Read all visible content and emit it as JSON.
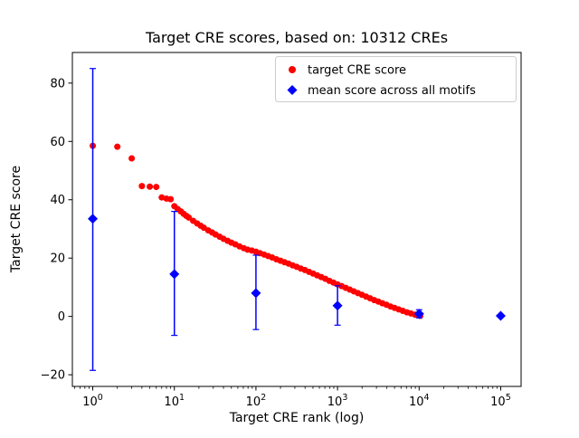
{
  "chart_data": {
    "type": "scatter",
    "title": "Target CRE scores, based on: 10312 CREs",
    "xlabel": "Target CRE rank (log)",
    "ylabel": "Target CRE score",
    "x_scale": "log",
    "xlog_range": [
      -0.25,
      5.25
    ],
    "ylim": [
      -24,
      90.5
    ],
    "x_ticks": [
      {
        "value": 1,
        "base": "10",
        "exp": "0"
      },
      {
        "value": 10,
        "base": "10",
        "exp": "1"
      },
      {
        "value": 100,
        "base": "10",
        "exp": "2"
      },
      {
        "value": 1000,
        "base": "10",
        "exp": "3"
      },
      {
        "value": 10000,
        "base": "10",
        "exp": "4"
      },
      {
        "value": 100000,
        "base": "10",
        "exp": "5"
      }
    ],
    "y_ticks": [
      {
        "value": -20,
        "label": "−20"
      },
      {
        "value": 0,
        "label": "0"
      },
      {
        "value": 20,
        "label": "20"
      },
      {
        "value": 40,
        "label": "40"
      },
      {
        "value": 60,
        "label": "60"
      },
      {
        "value": 80,
        "label": "80"
      }
    ],
    "colors": {
      "target": "#ff0000",
      "mean": "#0000ff"
    },
    "legend": [
      {
        "label": "target CRE score",
        "marker": "circle",
        "color": "#ff0000"
      },
      {
        "label": "mean score across all motifs",
        "marker": "diamond",
        "color": "#0000ff"
      }
    ],
    "series": {
      "target_cre_score": {
        "name": "target CRE score",
        "marker": "circle",
        "points": [
          [
            1,
            58.5
          ],
          [
            2,
            58.2
          ],
          [
            3,
            54.2
          ],
          [
            4,
            44.7
          ],
          [
            5,
            44.5
          ],
          [
            6,
            44.4
          ],
          [
            7,
            40.8
          ],
          [
            8,
            40.4
          ],
          [
            9,
            40.2
          ],
          [
            10,
            37.8
          ],
          [
            11,
            36.8
          ],
          [
            12,
            36.0
          ],
          [
            13,
            35.2
          ],
          [
            14,
            34.5
          ],
          [
            15,
            33.9
          ],
          [
            17,
            32.8
          ],
          [
            19,
            31.9
          ],
          [
            21,
            31.1
          ],
          [
            23,
            30.4
          ],
          [
            26,
            29.5
          ],
          [
            29,
            28.8
          ],
          [
            32,
            28.1
          ],
          [
            36,
            27.3
          ],
          [
            40,
            26.6
          ],
          [
            45,
            25.9
          ],
          [
            50,
            25.3
          ],
          [
            56,
            24.7
          ],
          [
            63,
            24.0
          ],
          [
            71,
            23.4
          ],
          [
            79,
            22.9
          ],
          [
            89,
            22.6
          ],
          [
            100,
            22.2
          ],
          [
            112,
            21.7
          ],
          [
            126,
            21.2
          ],
          [
            141,
            20.7
          ],
          [
            158,
            20.2
          ],
          [
            178,
            19.6
          ],
          [
            200,
            19.1
          ],
          [
            224,
            18.6
          ],
          [
            251,
            18.1
          ],
          [
            282,
            17.5
          ],
          [
            316,
            17.0
          ],
          [
            355,
            16.4
          ],
          [
            398,
            15.9
          ],
          [
            447,
            15.3
          ],
          [
            501,
            14.7
          ],
          [
            562,
            14.1
          ],
          [
            631,
            13.5
          ],
          [
            708,
            12.9
          ],
          [
            794,
            12.2
          ],
          [
            891,
            11.6
          ],
          [
            1000,
            11.0
          ],
          [
            1122,
            10.4
          ],
          [
            1259,
            9.8
          ],
          [
            1413,
            9.2
          ],
          [
            1585,
            8.6
          ],
          [
            1778,
            8.0
          ],
          [
            1995,
            7.4
          ],
          [
            2239,
            6.8
          ],
          [
            2512,
            6.2
          ],
          [
            2818,
            5.6
          ],
          [
            3162,
            5.1
          ],
          [
            3548,
            4.5
          ],
          [
            3981,
            4.0
          ],
          [
            4467,
            3.4
          ],
          [
            5012,
            2.9
          ],
          [
            5623,
            2.4
          ],
          [
            6310,
            1.9
          ],
          [
            7079,
            1.4
          ],
          [
            7943,
            1.0
          ],
          [
            8913,
            0.6
          ],
          [
            10000,
            0.3
          ],
          [
            10312,
            0.2
          ]
        ]
      },
      "mean_score": {
        "name": "mean score across all motifs",
        "marker": "diamond",
        "points": [
          {
            "x": 1,
            "mean": 33.5,
            "lo": -18.5,
            "hi": 85.0
          },
          {
            "x": 10,
            "mean": 14.5,
            "lo": -6.5,
            "hi": 36.0
          },
          {
            "x": 100,
            "mean": 8.0,
            "lo": -4.5,
            "hi": 21.0
          },
          {
            "x": 1000,
            "mean": 3.7,
            "lo": -3.0,
            "hi": 10.5
          },
          {
            "x": 10000,
            "mean": 0.9,
            "lo": -0.5,
            "hi": 2.3
          },
          {
            "x": 100000,
            "mean": 0.2,
            "lo": 0.0,
            "hi": 0.4
          }
        ]
      }
    }
  }
}
